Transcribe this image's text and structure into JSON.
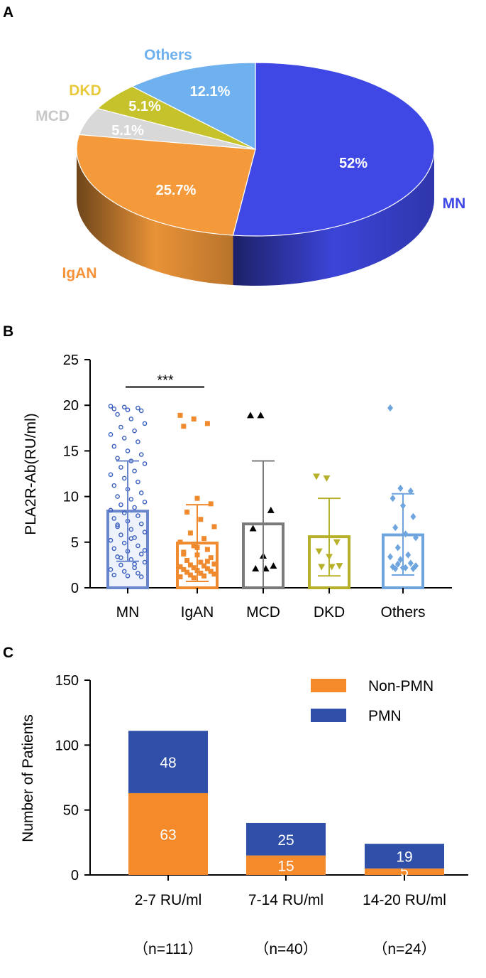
{
  "panels": {
    "a": "A",
    "b": "B",
    "c": "C"
  },
  "chart_data": [
    {
      "type": "pie",
      "title": "",
      "slices": [
        {
          "label": "MN",
          "value": 52,
          "pct_label": "52%",
          "color": "#3f48e4"
        },
        {
          "label": "IgAN",
          "value": 25.7,
          "pct_label": "25.7%",
          "color": "#f59a3a"
        },
        {
          "label": "MCD",
          "value": 5.1,
          "pct_label": "5.1%",
          "color": "#d8d8d8"
        },
        {
          "label": "DKD",
          "value": 5.1,
          "pct_label": "5.1%",
          "color": "#c5c22b"
        },
        {
          "label": "Others",
          "value": 12.1,
          "pct_label": "12.1%",
          "color": "#6fb0ee"
        }
      ]
    },
    {
      "type": "bar",
      "ylabel": "PLA2R-Ab(RU/ml)",
      "xlabel": "",
      "ylim": [
        0,
        25
      ],
      "yticks": [
        "0",
        "5",
        "10",
        "15",
        "20",
        "25"
      ],
      "categories": [
        "MN",
        "IgAN",
        "MCD",
        "DKD",
        "Others"
      ],
      "means": [
        8.4,
        4.9,
        7.0,
        5.6,
        5.8
      ],
      "sd_upper": [
        13.9,
        9.1,
        13.9,
        9.8,
        10.3
      ],
      "sd_lower": [
        2.9,
        0.7,
        0.0,
        1.3,
        1.4
      ],
      "colors": [
        "#6a86cc",
        "#f08a2e",
        "#7a7a7a",
        "#b7b02a",
        "#6fa5de"
      ],
      "significance": {
        "label": "***",
        "from": "MN",
        "to": "IgAN",
        "y": 22.0
      },
      "points": {
        "MN": [
          19.9,
          19.8,
          19.7,
          19.6,
          19.5,
          19.4,
          19.0,
          18.5,
          18.0,
          17.6,
          17.2,
          16.8,
          16.4,
          16.0,
          15.5,
          15.0,
          14.6,
          14.2,
          13.9,
          13.6,
          13.2,
          12.8,
          12.4,
          12.0,
          11.6,
          11.2,
          10.8,
          10.4,
          10.0,
          9.7,
          9.4,
          9.1,
          8.8,
          8.5,
          8.2,
          7.9,
          7.6,
          7.3,
          7.0,
          6.7,
          6.4,
          6.1,
          5.8,
          5.5,
          5.2,
          4.9,
          4.6,
          4.3,
          4.0,
          3.7,
          3.4,
          3.1,
          2.8,
          2.5,
          2.2,
          2.0,
          1.8,
          1.6,
          1.4,
          1.3,
          1.2,
          6.9,
          5.4,
          4.1,
          3.3,
          2.6
        ],
        "IgAN": [
          18.9,
          18.5,
          18.0,
          17.7,
          9.8,
          9.2,
          8.3,
          7.5,
          6.7,
          6.0,
          5.4,
          5.0,
          4.6,
          4.2,
          3.9,
          3.6,
          3.3,
          3.0,
          2.8,
          2.6,
          2.5,
          2.4,
          2.3,
          2.2,
          2.1,
          2.0,
          1.9,
          1.8,
          1.7,
          1.6,
          1.5,
          1.4,
          1.3,
          1.2,
          1.1,
          2.9,
          3.7,
          4.4
        ],
        "MCD": [
          18.9,
          18.9,
          8.5,
          6.5,
          3.5,
          2.4,
          2.1,
          2.1
        ],
        "DKD": [
          12.2,
          12.0,
          5.0,
          4.0,
          3.4,
          2.4,
          2.3,
          2.3
        ],
        "Others": [
          19.7,
          10.9,
          10.6,
          9.8,
          9.0,
          7.8,
          6.6,
          5.9,
          5.5,
          4.4,
          3.6,
          3.4,
          3.1,
          2.7,
          2.3,
          2.2,
          2.1,
          2.1,
          2.2,
          2.4,
          2.6
        ]
      }
    },
    {
      "type": "bar",
      "stacked": true,
      "ylabel": "Number of Patients",
      "xlabel": "",
      "ylim": [
        0,
        150
      ],
      "yticks": [
        "0",
        "50",
        "100",
        "150"
      ],
      "categories": [
        "2-7 RU/ml",
        "7-14 RU/ml",
        "14-20 RU/ml"
      ],
      "sublabels": [
        "（n=111）",
        "（n=40）",
        "（n=24）"
      ],
      "series": [
        {
          "name": "Non-PMN",
          "values": [
            63,
            15,
            5
          ],
          "labels": [
            "63",
            "15",
            "5"
          ],
          "color": "#f58a2a"
        },
        {
          "name": "PMN",
          "values": [
            48,
            25,
            19
          ],
          "labels": [
            "48",
            "25",
            "19"
          ],
          "color": "#2f4fa8"
        }
      ]
    }
  ]
}
